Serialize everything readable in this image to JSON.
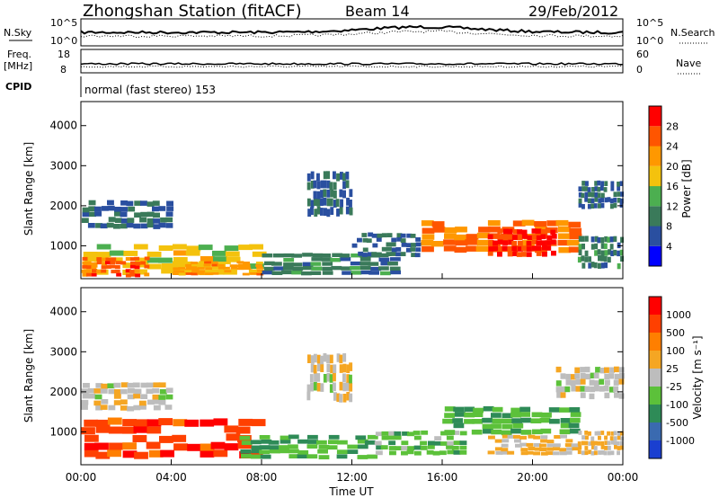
{
  "header": {
    "title": "Zhongshan Station (fitACF)",
    "beam": "Beam 14",
    "date": "29/Feb/2012"
  },
  "params": {
    "nsky_label": "N.Sky",
    "nsearch_label": "N.Search",
    "nsky_ticks": [
      "10^5",
      "10^0"
    ],
    "nsearch_ticks": [
      "10^5",
      "10^0"
    ],
    "freq_label_1": "Freq.",
    "freq_label_2": "[MHz]",
    "freq_ticks": [
      "18",
      "8"
    ],
    "nave_label": "Nave",
    "nave_ticks": [
      "60",
      "0"
    ],
    "cpid_label": "CPID",
    "cpid_text": "normal (fast stereo) 153"
  },
  "axes": {
    "ylabel": "Slant Range [km]",
    "xlabel": "Time UT",
    "y_ticks": [
      "4000",
      "3000",
      "2000",
      "1000"
    ],
    "x_ticks": [
      "00:00",
      "04:00",
      "08:00",
      "12:00",
      "16:00",
      "20:00",
      "00:00"
    ]
  },
  "power_scale": {
    "label": "Power [dB]",
    "ticks": [
      "28",
      "24",
      "20",
      "16",
      "12",
      "8",
      "4"
    ],
    "colors": [
      "#0000ff",
      "#2a4fa0",
      "#3a7a5a",
      "#4caf50",
      "#f4c20d",
      "#ff9800",
      "#ff5500",
      "#ff0000"
    ]
  },
  "velocity_scale": {
    "label": "Velocity [m s⁻¹]",
    "ticks": [
      "1000",
      "500",
      "100",
      "25",
      "-25",
      "-100",
      "-500",
      "-1000"
    ],
    "colors": [
      "#1a3fd0",
      "#3a6ab0",
      "#2e8b57",
      "#5cc13a",
      "#bdbdbd",
      "#f5a623",
      "#ff7f00",
      "#ff4000",
      "#ff0000"
    ]
  },
  "chart_data": [
    {
      "type": "heatmap",
      "title": "Power",
      "xlabel": "Time UT",
      "ylabel": "Slant Range [km]",
      "xlim": [
        0,
        24
      ],
      "ylim": [
        180,
        4600
      ],
      "colorbar": {
        "label": "Power [dB]",
        "range": [
          0,
          32
        ]
      },
      "regions": [
        {
          "t": [
            0,
            8
          ],
          "range": [
            250,
            1000
          ],
          "value": 18
        },
        {
          "t": [
            0,
            3
          ],
          "range": [
            200,
            700
          ],
          "value": 26
        },
        {
          "t": [
            0,
            4
          ],
          "range": [
            1400,
            2100
          ],
          "value": 8
        },
        {
          "t": [
            4,
            8
          ],
          "range": [
            250,
            600
          ],
          "value": 22
        },
        {
          "t": [
            8,
            14
          ],
          "range": [
            250,
            800
          ],
          "value": 10
        },
        {
          "t": [
            10,
            12
          ],
          "range": [
            1700,
            2800
          ],
          "value": 7
        },
        {
          "t": [
            12,
            15
          ],
          "range": [
            700,
            1300
          ],
          "value": 8
        },
        {
          "t": [
            15,
            22
          ],
          "range": [
            800,
            1600
          ],
          "value": 24
        },
        {
          "t": [
            18,
            21
          ],
          "range": [
            700,
            1400
          ],
          "value": 29
        },
        {
          "t": [
            22,
            24
          ],
          "range": [
            1900,
            2600
          ],
          "value": 8
        },
        {
          "t": [
            22,
            24
          ],
          "range": [
            400,
            1200
          ],
          "value": 10
        }
      ]
    },
    {
      "type": "heatmap",
      "title": "Velocity",
      "xlabel": "Time UT",
      "ylabel": "Slant Range [km]",
      "xlim": [
        0,
        24
      ],
      "ylim": [
        180,
        4600
      ],
      "colorbar": {
        "label": "Velocity [m s⁻¹]",
        "range": [
          -1000,
          1000
        ]
      },
      "regions": [
        {
          "t": [
            0,
            8
          ],
          "range": [
            300,
            1300
          ],
          "value": 700
        },
        {
          "t": [
            0,
            4
          ],
          "range": [
            1500,
            2200
          ],
          "value": 10
        },
        {
          "t": [
            7,
            13
          ],
          "range": [
            300,
            900
          ],
          "value": -300
        },
        {
          "t": [
            10,
            12
          ],
          "range": [
            1700,
            2900
          ],
          "value": 50
        },
        {
          "t": [
            13,
            17
          ],
          "range": [
            400,
            1000
          ],
          "value": -200
        },
        {
          "t": [
            16,
            22
          ],
          "range": [
            900,
            1600
          ],
          "value": -300
        },
        {
          "t": [
            18,
            22
          ],
          "range": [
            400,
            900
          ],
          "value": 150
        },
        {
          "t": [
            21,
            24
          ],
          "range": [
            1800,
            2600
          ],
          "value": 5
        },
        {
          "t": [
            22,
            24
          ],
          "range": [
            400,
            1000
          ],
          "value": 150
        }
      ]
    }
  ]
}
